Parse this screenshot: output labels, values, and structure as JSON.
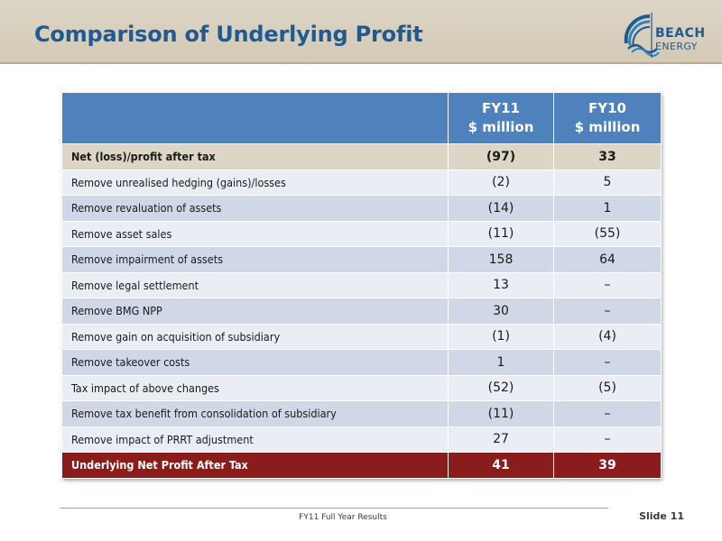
{
  "header": {
    "title": "Comparison of Underlying Profit",
    "logo_line1": "BEACH",
    "logo_line2": "ENERGY"
  },
  "table": {
    "columns": [
      {
        "line1": "FY11",
        "line2": "$ million"
      },
      {
        "line1": "FY10",
        "line2": "$ million"
      }
    ],
    "rows": [
      {
        "label": "Net (loss)/profit after tax",
        "fy11": "(97)",
        "fy10": "33"
      },
      {
        "label": "Remove unrealised hedging (gains)/losses",
        "fy11": "(2)",
        "fy10": "5"
      },
      {
        "label": "Remove revaluation of assets",
        "fy11": "(14)",
        "fy10": "1"
      },
      {
        "label": "Remove asset sales",
        "fy11": "(11)",
        "fy10": "(55)"
      },
      {
        "label": "Remove impairment of assets",
        "fy11": "158",
        "fy10": "64"
      },
      {
        "label": "Remove legal settlement",
        "fy11": "13",
        "fy10": "–"
      },
      {
        "label": "Remove BMG NPP",
        "fy11": "30",
        "fy10": "–"
      },
      {
        "label": "Remove gain on acquisition of subsidiary",
        "fy11": "(1)",
        "fy10": "(4)"
      },
      {
        "label": "Remove takeover costs",
        "fy11": "1",
        "fy10": "–"
      },
      {
        "label": "Tax impact of above changes",
        "fy11": "(52)",
        "fy10": "(5)"
      },
      {
        "label": "Remove tax benefit from consolidation of subsidiary",
        "fy11": "(11)",
        "fy10": "–"
      },
      {
        "label": "Remove impact of PRRT adjustment",
        "fy11": "27",
        "fy10": "–"
      }
    ],
    "total": {
      "label": "Underlying Net Profit After Tax",
      "fy11": "41",
      "fy10": "39"
    }
  },
  "footer": {
    "text": "FY11 Full Year Results",
    "slide": "Slide 11"
  },
  "colors": {
    "header_band": "#d3c9b6",
    "title": "#1f5a92",
    "table_header": "#4f81bd",
    "row_first": "#ddd6c6",
    "row_light": "#e9edf4",
    "row_dark": "#d0d8e8",
    "total_row": "#8b1c1c"
  }
}
